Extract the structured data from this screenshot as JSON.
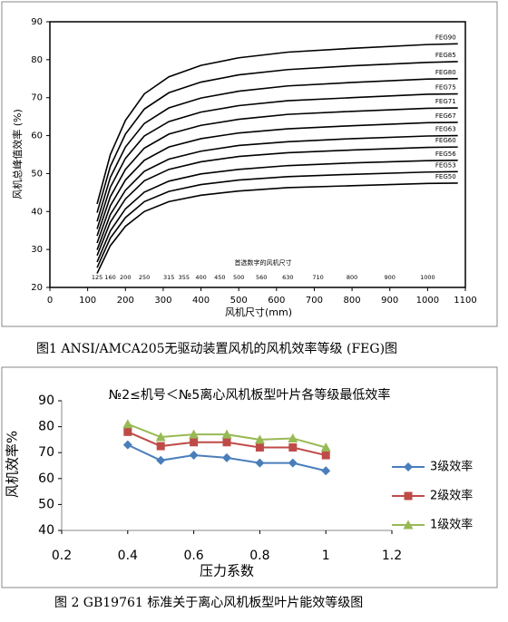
{
  "chart_data": [
    {
      "type": "line",
      "caption": "图1  ANSI/AMCA205无驱动装置风机的风机效率等级 (FEG)图",
      "xlabel": "风机尺寸(mm)",
      "ylabel": "风机总峰值效率 (%)",
      "annotation": "首选数字的风机尺寸",
      "preferred_sizes": [
        125,
        160,
        200,
        250,
        315,
        355,
        400,
        450,
        500,
        560,
        630,
        710,
        800,
        900,
        1000
      ],
      "x": [
        125,
        160,
        200,
        250,
        315,
        400,
        500,
        630,
        800,
        1000,
        1080
      ],
      "xlim": [
        0,
        1100
      ],
      "xticks": [
        0,
        100,
        200,
        300,
        400,
        500,
        600,
        700,
        800,
        900,
        1000,
        1100
      ],
      "ylim": [
        20,
        90
      ],
      "yticks": [
        20,
        30,
        40,
        50,
        60,
        70,
        80,
        90
      ],
      "grid": false,
      "color": "#000000",
      "legend": "line-end",
      "series": [
        {
          "name": "FEG90",
          "values": [
            42,
            55,
            64,
            71,
            75.5,
            78.5,
            80.5,
            82,
            83,
            84,
            84.2
          ]
        },
        {
          "name": "FEG85",
          "values": [
            39.7,
            51.9,
            60.4,
            67.0,
            71.3,
            74.1,
            76.0,
            77.4,
            78.4,
            79.3,
            79.5
          ]
        },
        {
          "name": "FEG80",
          "values": [
            37.4,
            49.0,
            57.0,
            63.2,
            67.3,
            69.9,
            71.7,
            73.1,
            74.0,
            74.9,
            75
          ]
        },
        {
          "name": "FEG75",
          "values": [
            35.4,
            46.4,
            54.0,
            59.9,
            63.7,
            66.2,
            67.9,
            69.2,
            70.0,
            70.9,
            71
          ]
        },
        {
          "name": "FEG71",
          "values": [
            33.6,
            43.9,
            51.1,
            56.7,
            60.4,
            62.7,
            64.3,
            65.6,
            66.4,
            67.2,
            67.3
          ]
        },
        {
          "name": "FEG67",
          "values": [
            31.7,
            41.5,
            48.3,
            53.5,
            57.0,
            59.2,
            60.7,
            61.8,
            62.6,
            63.4,
            63.5
          ]
        },
        {
          "name": "FEG63",
          "values": [
            29.9,
            39.2,
            45.6,
            50.6,
            53.8,
            55.9,
            57.4,
            58.4,
            59.2,
            59.9,
            60
          ]
        },
        {
          "name": "FEG60",
          "values": [
            28.4,
            37.2,
            43.3,
            48.1,
            51.1,
            53.1,
            54.5,
            55.5,
            56.2,
            56.9,
            57
          ]
        },
        {
          "name": "FEG56",
          "values": [
            26.7,
            34.9,
            40.7,
            45.1,
            48.0,
            49.9,
            51.1,
            52.1,
            52.8,
            53.4,
            53.5
          ]
        },
        {
          "name": "FEG53",
          "values": [
            25.2,
            33.0,
            38.4,
            42.6,
            45.3,
            47.1,
            48.3,
            49.2,
            49.8,
            50.4,
            50.5
          ]
        },
        {
          "name": "FEG50",
          "values": [
            23.7,
            31.0,
            36.1,
            40.0,
            42.6,
            44.3,
            45.4,
            46.3,
            46.8,
            47.4,
            47.5
          ]
        }
      ]
    },
    {
      "type": "line",
      "caption": "图 2  GB19761 标准关于离心风机板型叶片能效等级图",
      "title": "№2≤机号＜№5离心风机板型叶片各等级最低效率",
      "xlabel": "压力系数",
      "ylabel": "风机效率%",
      "x": [
        0.4,
        0.5,
        0.6,
        0.7,
        0.8,
        0.9,
        1
      ],
      "xlim": [
        0.2,
        1.2
      ],
      "xticks": [
        0.2,
        0.4,
        0.6,
        0.8,
        1,
        1.2
      ],
      "ylim": [
        40,
        90
      ],
      "yticks": [
        40,
        50,
        60,
        70,
        80,
        90
      ],
      "grid": false,
      "legend": "right",
      "series": [
        {
          "name": "3级效率",
          "color": "#4a7ebb",
          "marker": "diamond",
          "values": [
            73,
            67,
            69,
            68,
            66,
            66,
            63
          ]
        },
        {
          "name": "2级效率",
          "color": "#be4b48",
          "marker": "square",
          "values": [
            78,
            72.5,
            74,
            74,
            72,
            72,
            69
          ]
        },
        {
          "name": "1级效率",
          "color": "#98b954",
          "marker": "triangle",
          "values": [
            81,
            76,
            77,
            77,
            75,
            75.5,
            72
          ]
        }
      ]
    }
  ]
}
